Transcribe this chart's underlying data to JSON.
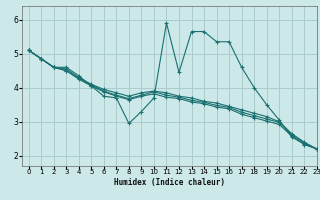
{
  "xlabel": "Humidex (Indice chaleur)",
  "bg_color": "#cce8e8",
  "grid_color": "#aacccc",
  "line_color": "#1a7070",
  "xlim": [
    -0.5,
    23
  ],
  "ylim": [
    1.7,
    6.4
  ],
  "xticks": [
    0,
    1,
    2,
    3,
    4,
    5,
    6,
    7,
    8,
    9,
    10,
    11,
    12,
    13,
    14,
    15,
    16,
    17,
    18,
    19,
    20,
    21,
    22,
    23
  ],
  "yticks": [
    2,
    3,
    4,
    5,
    6
  ],
  "series": [
    [
      5.1,
      4.85,
      4.6,
      4.6,
      4.35,
      4.05,
      3.75,
      3.7,
      2.95,
      3.3,
      3.7,
      5.9,
      4.45,
      5.65,
      5.65,
      5.35,
      5.35,
      4.6,
      4.0,
      3.5,
      3.05,
      2.55,
      2.35,
      2.2
    ],
    [
      5.1,
      4.85,
      4.6,
      4.55,
      4.3,
      4.1,
      3.95,
      3.85,
      3.75,
      3.85,
      3.9,
      3.85,
      3.75,
      3.7,
      3.6,
      3.55,
      3.45,
      3.35,
      3.25,
      3.15,
      3.0,
      2.65,
      2.4,
      2.2
    ],
    [
      5.1,
      4.85,
      4.6,
      4.5,
      4.28,
      4.08,
      3.9,
      3.78,
      3.68,
      3.78,
      3.88,
      3.78,
      3.72,
      3.63,
      3.57,
      3.48,
      3.42,
      3.28,
      3.18,
      3.08,
      2.98,
      2.62,
      2.37,
      2.2
    ],
    [
      5.1,
      4.85,
      4.6,
      4.5,
      4.25,
      4.05,
      3.88,
      3.75,
      3.65,
      3.75,
      3.82,
      3.72,
      3.68,
      3.58,
      3.53,
      3.43,
      3.38,
      3.22,
      3.12,
      3.02,
      2.92,
      2.58,
      2.33,
      2.2
    ]
  ]
}
